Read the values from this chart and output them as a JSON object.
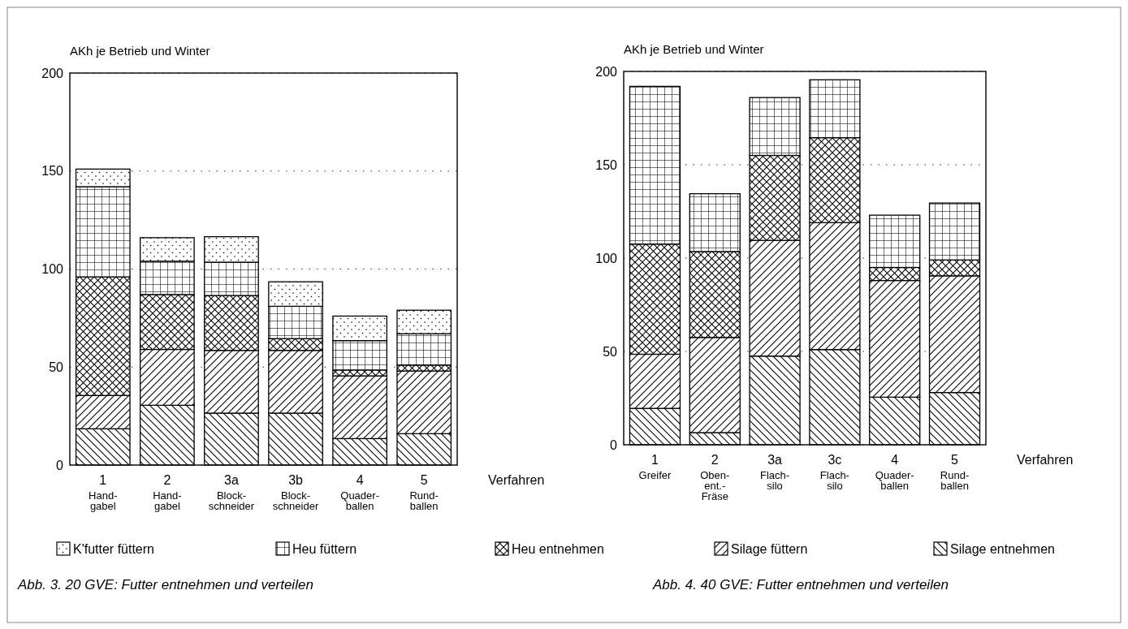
{
  "chart_data": [
    {
      "type": "bar",
      "title": "Abb. 3.  20 GVE: Futter entnehmen und verteilen",
      "ylabel": "AKh je Betrieb und Winter",
      "xlabel": "Verfahren",
      "categories": [
        "1\nHand-\ngabel",
        "2\nHand-\ngabel",
        "3a\nBlock-\nschneider",
        "3b\nBlock-\nschneider",
        "4\nQuader-\nballen",
        "5\nRund-\nballen"
      ],
      "stacked": true,
      "ylim": [
        0,
        200
      ],
      "yticks": [
        0,
        50,
        100,
        150,
        200
      ],
      "grid": "y",
      "legend": "bottom",
      "series": [
        {
          "name": "Silage entnehmen",
          "color": "#000000",
          "values": [
            18.5,
            30.5,
            26.5,
            26.5,
            13.5,
            16
          ]
        },
        {
          "name": "Silage füttern",
          "color": "#000000",
          "values": [
            17,
            28.5,
            32,
            32,
            32,
            32
          ]
        },
        {
          "name": "Heu entnehmen",
          "color": "#000000",
          "values": [
            60.5,
            28,
            28,
            6,
            3,
            3
          ]
        },
        {
          "name": "Heu füttern",
          "color": "#000000",
          "values": [
            46,
            17,
            17,
            16.5,
            15,
            16
          ]
        },
        {
          "name": "K'futter füttern",
          "color": "#000000",
          "values": [
            9,
            12,
            13,
            12.5,
            12.5,
            12
          ]
        }
      ]
    },
    {
      "type": "bar",
      "title": "Abb. 4.  40 GVE: Futter entnehmen und verteilen",
      "ylabel": "AKh je Betrieb und Winter",
      "xlabel": "Verfahren",
      "categories": [
        "1\nGreifer",
        "2\nOben-\nent.-\nFräse",
        "3a\nFlach-\nsilo",
        "3c\nFlach-\nsilo",
        "4\nQuader-\nballen",
        "5\nRund-\nballen"
      ],
      "stacked": true,
      "ylim": [
        0,
        200
      ],
      "yticks": [
        0,
        50,
        100,
        150,
        200
      ],
      "grid": "y",
      "series": [
        {
          "color": "#000000",
          "values": [
            19.5,
            6.5,
            47.5,
            51,
            25.5,
            28
          ]
        },
        {
          "color": "#000000",
          "values": [
            29,
            51,
            62,
            68,
            62.5,
            62.5
          ]
        },
        {
          "color": "#000000",
          "values": [
            59,
            46,
            45.5,
            45.5,
            7,
            8.5
          ]
        },
        {
          "color": "#000000",
          "values": [
            84.5,
            31,
            31,
            31,
            28,
            30.5
          ]
        }
      ]
    }
  ]
}
